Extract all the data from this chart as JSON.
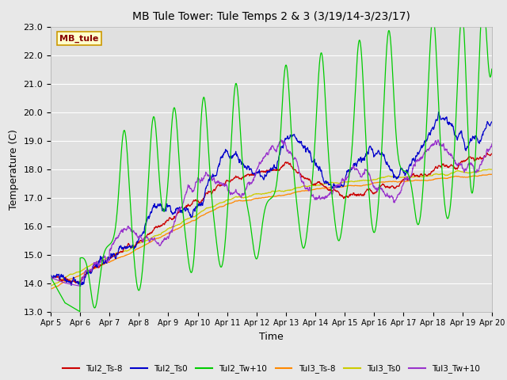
{
  "title": "MB Tule Tower: Tule Temps 2 & 3 (3/19/14-3/23/17)",
  "xlabel": "Time",
  "ylabel": "Temperature (C)",
  "ylim": [
    13.0,
    23.0
  ],
  "yticks": [
    13.0,
    14.0,
    15.0,
    16.0,
    17.0,
    18.0,
    19.0,
    20.0,
    21.0,
    22.0,
    23.0
  ],
  "xtick_labels": [
    "Apr 5",
    "Apr 6",
    "Apr 7",
    "Apr 8",
    "Apr 9",
    "Apr 10",
    "Apr 11",
    "Apr 12",
    "Apr 13",
    "Apr 14",
    "Apr 15",
    "Apr 16",
    "Apr 17",
    "Apr 18",
    "Apr 19",
    "Apr 20"
  ],
  "background_color": "#e8e8e8",
  "plot_bg_color": "#e0e0e0",
  "grid_color": "#ffffff",
  "series_colors": {
    "Tul2_Ts-8": "#cc0000",
    "Tul2_Ts0": "#0000cc",
    "Tul2_Tw+10": "#00cc00",
    "Tul3_Ts-8": "#ff8800",
    "Tul3_Ts0": "#cccc00",
    "Tul3_Tw+10": "#9933cc"
  },
  "annotation_text": "MB_tule",
  "annotation_bg": "#ffffcc",
  "annotation_border": "#cc9900"
}
